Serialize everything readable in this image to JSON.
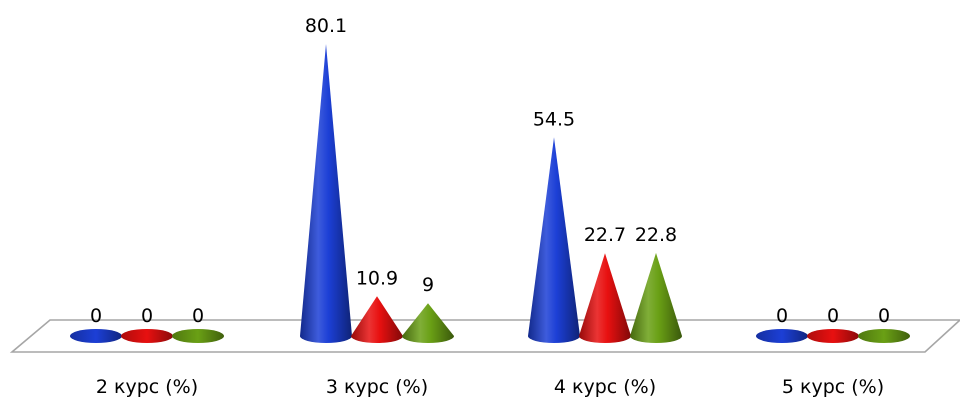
{
  "chart_data": {
    "type": "bar",
    "style": "3d-cone",
    "categories": [
      "2 курс (%)",
      "3 курс (%)",
      "4 курс (%)",
      "5 курс (%)"
    ],
    "series": [
      {
        "color": "#1c3fd6",
        "values": [
          0,
          80.1,
          54.5,
          0
        ]
      },
      {
        "color": "#e81010",
        "values": [
          0,
          10.9,
          22.7,
          0
        ]
      },
      {
        "color": "#6aa015",
        "values": [
          0,
          9,
          22.8,
          0
        ]
      }
    ],
    "value_labels": [
      [
        "0",
        "80.1",
        "54.5",
        "0"
      ],
      [
        "0",
        "10.9",
        "22.7",
        "0"
      ],
      [
        "0",
        "9",
        "22.8",
        "0"
      ]
    ],
    "ylim": [
      0,
      85
    ],
    "grid": false,
    "legend": "none"
  }
}
